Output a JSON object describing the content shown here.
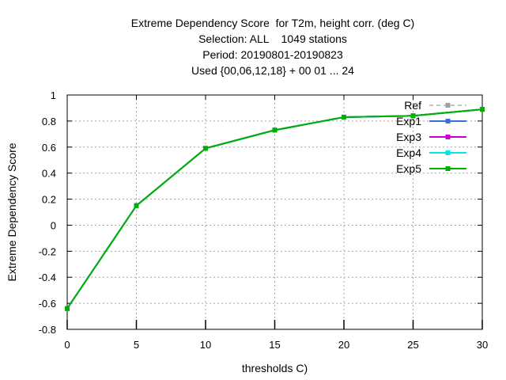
{
  "chart_data": {
    "type": "line",
    "title_lines": [
      "Extreme Dependency Score  for T2m, height corr. (deg C)",
      "Selection: ALL    1049 stations",
      "Period: 20190801-20190823",
      "Used {00,06,12,18} + 00 01 ... 24"
    ],
    "xlabel": "thresholds C)",
    "ylabel": "Extreme Dependency Score",
    "xlim": [
      0,
      30
    ],
    "ylim": [
      -0.8,
      1
    ],
    "xticks": [
      0,
      5,
      10,
      15,
      20,
      25,
      30
    ],
    "yticks": [
      -0.8,
      -0.6,
      -0.4,
      -0.2,
      0,
      0.2,
      0.4,
      0.6,
      0.8,
      1
    ],
    "ytick_labels": [
      "-0.8",
      "-0.6",
      "-0.4",
      "-0.2",
      "0",
      "0.2",
      "0.4",
      "0.6",
      "0.8",
      "1"
    ],
    "grid": true,
    "legend_position": "top-right",
    "x": [
      0,
      5,
      10,
      15,
      20,
      25,
      30
    ],
    "series": [
      {
        "name": "Ref",
        "color": "#a0a0a0",
        "dashed": true,
        "values": [
          -0.64,
          0.15,
          0.59,
          0.73,
          0.83,
          0.84,
          0.89
        ]
      },
      {
        "name": "Exp1",
        "color": "#3b6fd6",
        "dashed": false,
        "values": [
          -0.64,
          0.15,
          0.59,
          0.73,
          0.83,
          0.84,
          0.89
        ]
      },
      {
        "name": "Exp3",
        "color": "#cc00cc",
        "dashed": false,
        "values": [
          -0.64,
          0.15,
          0.59,
          0.73,
          0.83,
          0.84,
          0.89
        ]
      },
      {
        "name": "Exp4",
        "color": "#00e5e5",
        "dashed": false,
        "values": [
          -0.64,
          0.15,
          0.59,
          0.73,
          0.83,
          0.84,
          0.89
        ]
      },
      {
        "name": "Exp5",
        "color": "#00b000",
        "dashed": false,
        "values": [
          -0.64,
          0.15,
          0.59,
          0.73,
          0.83,
          0.84,
          0.89
        ]
      }
    ]
  }
}
